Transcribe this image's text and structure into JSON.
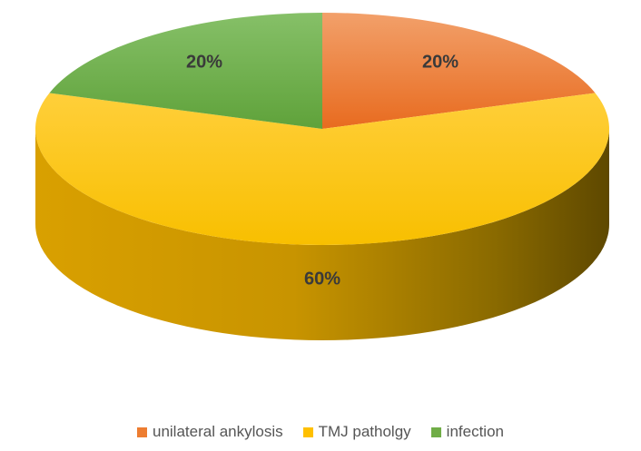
{
  "chart_data": {
    "type": "pie",
    "style": "3d",
    "categories": [
      "unilateral ankylosis",
      "TMJ patholgy",
      "infection"
    ],
    "values": [
      20,
      60,
      20
    ],
    "labels": [
      "20%",
      "60%",
      "20%"
    ],
    "colors": [
      "#ED7D31",
      "#FFC000",
      "#70AD47"
    ],
    "legend_position": "bottom",
    "title": ""
  },
  "legend": {
    "items": [
      {
        "label": "unilateral ankylosis",
        "color": "#ED7D31"
      },
      {
        "label": "TMJ patholgy",
        "color": "#FFC000"
      },
      {
        "label": "infection",
        "color": "#70AD47"
      }
    ]
  }
}
